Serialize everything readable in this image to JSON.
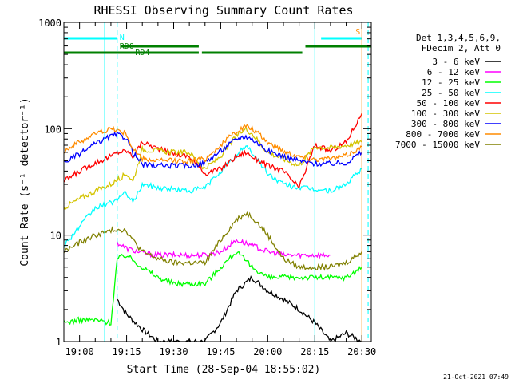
{
  "chart_data": {
    "type": "line",
    "title": "RHESSI Observing Summary Count Rates",
    "xlabel": "Start Time (28-Sep-04 18:55:02)",
    "ylabel": "Count Rate (s⁻¹ detector⁻¹)",
    "y_scale": "log",
    "ylim": [
      1,
      1000
    ],
    "xlim": [
      "18:55",
      "20:33"
    ],
    "x_ticks": [
      "19:00",
      "19:15",
      "19:30",
      "19:45",
      "20:00",
      "20:15",
      "20:30"
    ],
    "y_ticks": [
      "1",
      "10",
      "100",
      "1000"
    ],
    "legend_header": [
      "Det 1,3,4,5,6,9,",
      "FDecim 2, Att 0"
    ],
    "legend_position": "right",
    "timestamp": "21-Oct-2021 07:49",
    "flags": [
      {
        "label": "N",
        "color": "#00ffff"
      },
      {
        "label": "RD0",
        "color": "#008000"
      },
      {
        "label": "RD4",
        "color": "#008000"
      },
      {
        "label": "S",
        "color": "#ff8c00"
      }
    ],
    "series": [
      {
        "name": "3 - 6 keV",
        "color": "#000000",
        "x": [
          "19:12",
          "19:15",
          "19:20",
          "19:25",
          "19:30",
          "19:35",
          "19:40",
          "19:45",
          "19:50",
          "19:55",
          "20:00",
          "20:05",
          "20:10",
          "20:15",
          "20:20",
          "20:25",
          "20:30"
        ],
        "y": [
          2.5,
          1.8,
          1.3,
          1,
          1,
          1,
          1,
          1.5,
          3,
          4,
          3,
          2.5,
          2,
          1.5,
          1,
          1.2,
          1
        ]
      },
      {
        "name": "6 - 12 keV",
        "color": "#ff00ff",
        "x": [
          "19:12",
          "19:15",
          "19:20",
          "19:25",
          "19:30",
          "19:35",
          "19:40",
          "19:45",
          "19:50",
          "19:55",
          "20:00",
          "20:05",
          "20:10",
          "20:15",
          "20:20"
        ],
        "y": [
          8.5,
          7.5,
          6.8,
          6.5,
          6.5,
          6.5,
          6.5,
          7,
          9,
          8,
          7,
          6.5,
          6.5,
          6.5,
          6.5
        ]
      },
      {
        "name": "12 - 25 keV",
        "color": "#00ff00",
        "x": [
          "18:55",
          "19:00",
          "19:05",
          "19:10",
          "19:12",
          "19:15",
          "19:20",
          "19:25",
          "19:30",
          "19:35",
          "19:40",
          "19:45",
          "19:50",
          "19:55",
          "20:00",
          "20:05",
          "20:10",
          "20:15",
          "20:20",
          "20:25",
          "20:30"
        ],
        "y": [
          1.5,
          1.6,
          1.6,
          1.5,
          6,
          6.5,
          5,
          4,
          3.5,
          3.5,
          3.5,
          5,
          7,
          5,
          4,
          4,
          4,
          4,
          4,
          4,
          5
        ]
      },
      {
        "name": "25 - 50 keV",
        "color": "#00ffff",
        "x": [
          "18:55",
          "19:00",
          "19:05",
          "19:10",
          "19:12",
          "19:15",
          "19:17",
          "19:20",
          "19:25",
          "19:30",
          "19:35",
          "19:40",
          "19:45",
          "19:50",
          "19:53",
          "19:55",
          "20:00",
          "20:05",
          "20:10",
          "20:15",
          "20:20",
          "20:25",
          "20:30"
        ],
        "y": [
          8,
          12,
          18,
          20,
          22,
          25,
          20,
          30,
          28,
          27,
          26,
          28,
          40,
          55,
          70,
          60,
          38,
          30,
          28,
          27,
          26,
          30,
          42
        ]
      },
      {
        "name": "50 - 100 keV",
        "color": "#ff0000",
        "x": [
          "18:55",
          "19:00",
          "19:05",
          "19:10",
          "19:12",
          "19:15",
          "19:17",
          "19:20",
          "19:25",
          "19:30",
          "19:35",
          "19:40",
          "19:45",
          "19:50",
          "19:53",
          "19:55",
          "20:00",
          "20:05",
          "20:10",
          "20:15",
          "20:20",
          "20:25",
          "20:30"
        ],
        "y": [
          32,
          40,
          48,
          55,
          60,
          62,
          55,
          75,
          65,
          58,
          55,
          38,
          42,
          55,
          60,
          55,
          45,
          40,
          28,
          70,
          62,
          75,
          140
        ]
      },
      {
        "name": "100 - 300 keV",
        "color": "#d4c400",
        "x": [
          "18:55",
          "19:00",
          "19:05",
          "19:10",
          "19:12",
          "19:15",
          "19:17",
          "19:20",
          "19:25",
          "19:30",
          "19:35",
          "19:40",
          "19:45",
          "19:50",
          "19:53",
          "19:55",
          "20:00",
          "20:05",
          "20:10",
          "20:15",
          "20:20",
          "20:25",
          "20:30"
        ],
        "y": [
          18,
          22,
          26,
          30,
          33,
          38,
          32,
          64,
          62,
          60,
          60,
          42,
          55,
          85,
          100,
          90,
          60,
          52,
          45,
          68,
          66,
          70,
          75
        ]
      },
      {
        "name": "300 - 800 keV",
        "color": "#0000ff",
        "x": [
          "18:55",
          "19:00",
          "19:05",
          "19:10",
          "19:12",
          "19:15",
          "19:17",
          "19:20",
          "19:25",
          "19:30",
          "19:35",
          "19:40",
          "19:45",
          "19:50",
          "19:53",
          "19:55",
          "20:00",
          "20:05",
          "20:10",
          "20:15",
          "20:20",
          "20:25",
          "20:30"
        ],
        "y": [
          48,
          58,
          72,
          85,
          88,
          82,
          60,
          46,
          45,
          45,
          45,
          48,
          62,
          80,
          85,
          80,
          62,
          55,
          50,
          47,
          47,
          48,
          60
        ]
      },
      {
        "name": "800 - 7000 keV",
        "color": "#ff8c00",
        "x": [
          "18:55",
          "19:00",
          "19:05",
          "19:10",
          "19:12",
          "19:15",
          "19:17",
          "19:20",
          "19:25",
          "19:30",
          "19:35",
          "19:40",
          "19:45",
          "19:50",
          "19:53",
          "19:55",
          "20:00",
          "20:05",
          "20:10",
          "20:15",
          "20:20",
          "20:25",
          "20:30"
        ],
        "y": [
          62,
          75,
          90,
          100,
          98,
          88,
          65,
          52,
          50,
          50,
          50,
          52,
          70,
          95,
          105,
          100,
          75,
          62,
          55,
          52,
          52,
          56,
          68
        ]
      },
      {
        "name": "7000 - 15000 keV",
        "color": "#808000",
        "x": [
          "18:55",
          "19:00",
          "19:05",
          "19:10",
          "19:12",
          "19:15",
          "19:17",
          "19:20",
          "19:25",
          "19:30",
          "19:35",
          "19:40",
          "19:45",
          "19:50",
          "19:53",
          "19:55",
          "20:00",
          "20:05",
          "20:10",
          "20:15",
          "20:20",
          "20:25",
          "20:30"
        ],
        "y": [
          7,
          8.5,
          10,
          11,
          11.5,
          11,
          9,
          7,
          6,
          5.5,
          5.5,
          5.5,
          9,
          14,
          16,
          15,
          10,
          6,
          5,
          5,
          5,
          5.5,
          7
        ]
      }
    ]
  }
}
